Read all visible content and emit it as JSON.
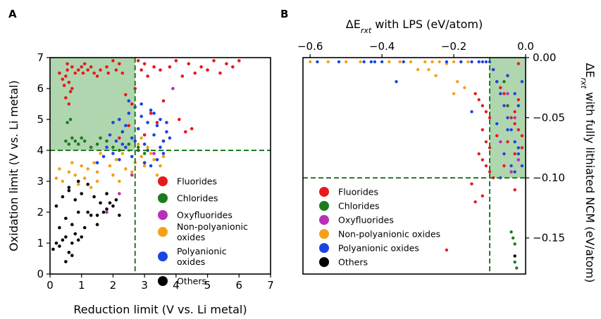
{
  "chart_data": [
    {
      "panel_label": "A",
      "type": "scatter",
      "title": "",
      "xlabel": "Reduction limit (V vs. Li metal)",
      "ylabel": "Oxidation limit (V vs. Li metal)",
      "xlim": [
        0,
        7
      ],
      "ylim": [
        0,
        7
      ],
      "xticks": [
        "0",
        "1",
        "2",
        "3",
        "4",
        "5",
        "6",
        "7"
      ],
      "yticks": [
        "0",
        "1",
        "2",
        "3",
        "4",
        "5",
        "6",
        "7"
      ],
      "grid": false,
      "legend_placement": "lower-right",
      "shaded_region": {
        "x": [
          0,
          2.7
        ],
        "y": [
          4,
          7
        ],
        "color": "#8fc48f"
      },
      "reference_lines": {
        "x": 2.7,
        "y": 4.0,
        "style": "dashed",
        "color": "#1f7a1f"
      },
      "series": [
        {
          "name": "Fluorides",
          "color": "#e8191c",
          "x": [
            0.3,
            0.4,
            0.45,
            0.5,
            0.55,
            0.6,
            0.65,
            0.7,
            0.5,
            0.6,
            0.8,
            0.9,
            1.0,
            1.05,
            1.1,
            1.2,
            1.3,
            1.4,
            1.5,
            1.6,
            1.8,
            1.85,
            2.0,
            2.1,
            2.2,
            2.3,
            2.5,
            2.6,
            2.7,
            2.8,
            2.9,
            3.0,
            3.1,
            3.3,
            3.5,
            3.8,
            4.0,
            4.2,
            4.4,
            4.6,
            4.8,
            5.0,
            5.2,
            5.4,
            5.6,
            5.8,
            6.0,
            3.2,
            3.6,
            4.1,
            4.5,
            2.4,
            2.2,
            3.0,
            3.4,
            4.3,
            0.55,
            0.7
          ],
          "y": [
            6.5,
            6.3,
            6.1,
            6.4,
            6.6,
            6.2,
            5.9,
            6.0,
            5.7,
            5.5,
            6.5,
            6.6,
            6.7,
            6.5,
            6.8,
            6.6,
            6.7,
            6.5,
            6.4,
            6.6,
            6.7,
            6.5,
            6.9,
            6.6,
            6.8,
            6.5,
            4.8,
            5.5,
            6.0,
            6.9,
            6.6,
            6.8,
            6.4,
            6.7,
            6.6,
            6.7,
            6.9,
            6.4,
            6.8,
            6.5,
            6.7,
            6.6,
            6.9,
            6.5,
            6.8,
            6.7,
            6.9,
            5.2,
            5.6,
            5.0,
            4.7,
            5.8,
            4.4,
            4.5,
            4.9,
            4.6,
            6.8,
            6.7
          ]
        },
        {
          "name": "Chlorides",
          "color": "#1f7a1f",
          "x": [
            0.5,
            0.6,
            0.7,
            0.8,
            0.9,
            1.0,
            1.1,
            1.3,
            1.5,
            1.6,
            1.8,
            2.0,
            2.2,
            2.5,
            2.8,
            3.0,
            0.55,
            0.65
          ],
          "y": [
            4.3,
            4.2,
            4.4,
            4.3,
            4.2,
            4.4,
            4.3,
            4.1,
            4.2,
            4.4,
            4.3,
            4.1,
            4.0,
            4.2,
            4.1,
            3.9,
            4.9,
            5.0
          ]
        },
        {
          "name": "Oxyfluorides",
          "color": "#b830b8",
          "x": [
            1.8,
            2.2,
            2.6,
            3.0,
            3.3,
            3.6,
            3.9
          ],
          "y": [
            2.0,
            2.6,
            3.2,
            3.6,
            3.9,
            4.3,
            6.0
          ]
        },
        {
          "name": "Non-polyanionic oxides",
          "color": "#f4a11a",
          "x": [
            0.2,
            0.4,
            0.6,
            0.8,
            1.0,
            1.2,
            1.4,
            1.5,
            1.7,
            1.9,
            2.1,
            2.3,
            2.5,
            2.7,
            2.9,
            3.1,
            3.3,
            3.5,
            0.3,
            0.7,
            1.1,
            1.6,
            2.0,
            2.4,
            2.8,
            3.2,
            1.3,
            1.8,
            2.2,
            2.6,
            3.0,
            3.4,
            0.9,
            1.5,
            2.9,
            3.6
          ],
          "y": [
            3.1,
            3.0,
            3.3,
            3.2,
            3.5,
            3.4,
            3.6,
            3.3,
            3.8,
            3.5,
            3.7,
            3.9,
            4.0,
            3.6,
            3.8,
            4.1,
            3.7,
            3.5,
            3.4,
            3.6,
            3.1,
            3.9,
            3.2,
            3.4,
            4.2,
            3.9,
            2.8,
            2.6,
            3.0,
            3.3,
            3.5,
            3.2,
            2.9,
            3.0,
            4.4,
            3.8
          ]
        },
        {
          "name": "Polyanionic oxides",
          "color": "#1b45e0",
          "x": [
            1.5,
            1.7,
            1.9,
            2.0,
            2.1,
            2.2,
            2.3,
            2.4,
            2.5,
            2.6,
            2.7,
            2.8,
            2.9,
            3.0,
            3.1,
            3.2,
            3.3,
            3.4,
            3.5,
            3.6,
            3.7,
            3.8,
            2.0,
            2.2,
            2.4,
            2.6,
            2.8,
            3.0,
            3.2,
            3.4,
            3.6,
            2.5,
            2.9,
            3.3,
            3.7,
            1.8,
            2.3,
            2.7,
            3.1,
            3.5
          ],
          "y": [
            3.6,
            3.8,
            4.5,
            4.9,
            4.3,
            5.0,
            4.6,
            4.8,
            5.2,
            4.4,
            5.4,
            4.7,
            5.1,
            4.2,
            4.9,
            5.3,
            4.5,
            4.8,
            5.0,
            4.3,
            4.6,
            4.4,
            3.9,
            3.7,
            4.1,
            3.8,
            4.0,
            3.6,
            3.5,
            3.7,
            3.9,
            5.6,
            5.5,
            5.2,
            4.9,
            4.1,
            4.2,
            4.3,
            4.0,
            4.1
          ]
        },
        {
          "name": "Others",
          "color": "#000000",
          "x": [
            0.1,
            0.2,
            0.3,
            0.4,
            0.5,
            0.6,
            0.7,
            0.8,
            0.9,
            1.0,
            0.3,
            0.5,
            0.7,
            0.9,
            0.2,
            0.4,
            0.6,
            0.8,
            1.0,
            1.2,
            1.4,
            1.6,
            1.8,
            2.0,
            1.5,
            1.7,
            1.9,
            2.1,
            0.5,
            0.7,
            1.1,
            1.3,
            0.6,
            0.9,
            1.2,
            1.5,
            1.8,
            2.2
          ],
          "y": [
            0.8,
            1.0,
            0.9,
            1.1,
            1.2,
            0.7,
            1.0,
            1.3,
            1.1,
            1.2,
            1.5,
            1.8,
            1.6,
            2.0,
            2.2,
            2.5,
            2.8,
            2.4,
            2.6,
            2.9,
            2.5,
            2.3,
            2.1,
            2.2,
            1.9,
            2.0,
            2.3,
            2.4,
            0.4,
            0.6,
            1.5,
            1.9,
            2.7,
            3.0,
            2.0,
            1.6,
            2.6,
            1.9
          ]
        }
      ]
    },
    {
      "panel_label": "B",
      "type": "scatter",
      "title": "",
      "xlabel_prefix": "ΔE",
      "xlabel_sub": "rxt",
      "xlabel_suffix": " with LPS (eV/atom)",
      "ylabel_prefix": "ΔE",
      "ylabel_sub": "rxt",
      "ylabel_suffix": " with fully lithiated NCM (eV/atom)",
      "x_axis_position": "top",
      "y_axis_position": "right",
      "xlim": [
        -0.62,
        0.0
      ],
      "ylim": [
        -0.18,
        0.0
      ],
      "xticks": [
        "−0.6",
        "−0.4",
        "−0.2",
        "0.0"
      ],
      "yticks": [
        "0.00",
        "−0.05",
        "−0.10",
        "−0.15"
      ],
      "grid": false,
      "legend_placement": "lower-left",
      "shaded_region": {
        "x": [
          -0.1,
          0.0
        ],
        "y": [
          -0.1,
          0.0
        ],
        "color": "#8fc48f"
      },
      "reference_lines": {
        "x": -0.1,
        "y": -0.1,
        "style": "dashed",
        "color": "#1f7a1f"
      },
      "series": [
        {
          "name": "Fluorides",
          "color": "#e8191c",
          "x": [
            -0.14,
            -0.13,
            -0.12,
            -0.11,
            -0.1,
            -0.12,
            -0.11,
            -0.1,
            -0.09,
            -0.08,
            -0.07,
            -0.06,
            -0.05,
            -0.04,
            -0.03,
            -0.02,
            -0.01,
            -0.05,
            -0.03,
            -0.02,
            -0.06,
            -0.04,
            -0.01,
            -0.03,
            -0.08,
            -0.05,
            -0.02,
            -0.12,
            -0.11,
            -0.13,
            -0.1,
            -0.22,
            -0.15,
            -0.14,
            -0.12,
            -0.09,
            -0.03,
            -0.02
          ],
          "y": [
            -0.03,
            -0.035,
            -0.04,
            -0.045,
            -0.05,
            -0.06,
            -0.07,
            -0.075,
            -0.01,
            -0.02,
            -0.025,
            -0.03,
            -0.04,
            -0.05,
            -0.055,
            -0.06,
            -0.065,
            -0.07,
            -0.08,
            -0.085,
            -0.09,
            -0.095,
            -0.075,
            -0.045,
            -0.065,
            -0.015,
            -0.035,
            -0.085,
            -0.09,
            -0.08,
            -0.095,
            -0.16,
            -0.105,
            -0.12,
            -0.115,
            -0.1,
            -0.11,
            -0.005
          ]
        },
        {
          "name": "Chlorides",
          "color": "#1f7a1f",
          "x": [
            -0.04,
            -0.035,
            -0.03,
            -0.03,
            -0.025,
            -0.06,
            -0.05
          ],
          "y": [
            -0.145,
            -0.15,
            -0.155,
            -0.17,
            -0.175,
            -0.02,
            -0.04
          ]
        },
        {
          "name": "Oxyfluorides",
          "color": "#b830b8",
          "x": [
            -0.05,
            -0.03,
            -0.07,
            -0.02,
            -0.04
          ],
          "y": [
            -0.03,
            -0.05,
            -0.07,
            -0.085,
            -0.095
          ]
        },
        {
          "name": "Non-polyanionic oxides",
          "color": "#f4a11a",
          "x": [
            -0.6,
            -0.55,
            -0.5,
            -0.46,
            -0.38,
            -0.35,
            -0.32,
            -0.28,
            -0.26,
            -0.24,
            -0.2,
            -0.18,
            -0.16,
            -0.22,
            -0.3,
            -0.25,
            -0.19,
            -0.17,
            -0.27,
            -0.2
          ],
          "y": [
            0.0,
            0.0,
            0.0,
            0.0,
            0.0,
            0.0,
            0.0,
            0.0,
            0.0,
            0.0,
            0.0,
            0.0,
            0.0,
            -0.005,
            -0.01,
            -0.015,
            -0.02,
            -0.025,
            -0.01,
            -0.03
          ]
        },
        {
          "name": "Polyanionic oxides",
          "color": "#1b45e0",
          "x": [
            -0.58,
            -0.52,
            -0.45,
            -0.43,
            -0.42,
            -0.4,
            -0.34,
            -0.22,
            -0.18,
            -0.15,
            -0.13,
            -0.12,
            -0.11,
            -0.1,
            -0.09,
            -0.08,
            -0.07,
            -0.06,
            -0.05,
            -0.04,
            -0.03,
            -0.02,
            -0.01,
            -0.07,
            -0.05,
            -0.03,
            -0.02,
            -0.06,
            -0.04,
            -0.01,
            -0.15,
            -0.36,
            -0.08,
            -0.02,
            -0.05,
            -0.03
          ],
          "y": [
            0.0,
            0.0,
            0.0,
            0.0,
            0.0,
            0.0,
            0.0,
            0.0,
            0.0,
            0.0,
            0.0,
            0.0,
            0.0,
            0.0,
            -0.01,
            -0.02,
            -0.03,
            -0.04,
            -0.05,
            -0.06,
            -0.07,
            -0.08,
            -0.09,
            -0.1,
            -0.06,
            -0.03,
            -0.04,
            -0.08,
            -0.09,
            -0.02,
            -0.045,
            -0.02,
            -0.055,
            -0.075,
            -0.015,
            -0.095
          ]
        },
        {
          "name": "Others",
          "color": "#000000",
          "x": [
            -0.03
          ],
          "y": [
            -0.165
          ]
        }
      ]
    }
  ]
}
